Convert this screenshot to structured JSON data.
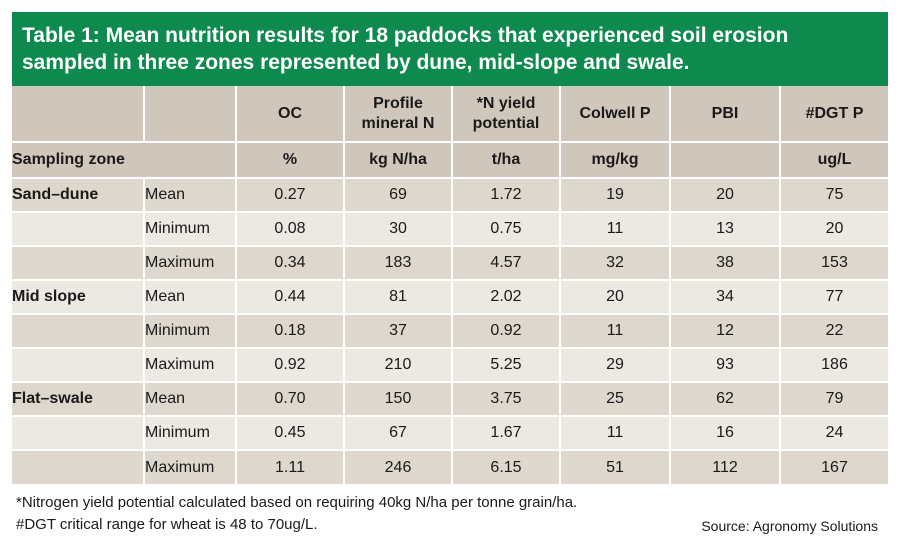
{
  "title": {
    "line1": "Table 1: Mean nutrition results for 18 paddocks that experienced soil erosion",
    "line2": "sampled in three zones represented by dune, mid-slope and swale."
  },
  "columns": [
    {
      "name": "OC",
      "unit": "%"
    },
    {
      "name": "Profile mineral N",
      "unit": "kg N/ha"
    },
    {
      "name": "*N yield potential",
      "unit": "t/ha"
    },
    {
      "name": "Colwell P",
      "unit": "mg/kg"
    },
    {
      "name": "PBI",
      "unit": ""
    },
    {
      "name": "#DGT P",
      "unit": "ug/L"
    }
  ],
  "header_row2_label": "Sampling zone",
  "rows": [
    {
      "zone": "Sand–dune",
      "stat": "Mean",
      "values": [
        "0.27",
        "69",
        "1.72",
        "19",
        "20",
        "75"
      ]
    },
    {
      "zone": "",
      "stat": "Minimum",
      "values": [
        "0.08",
        "30",
        "0.75",
        "11",
        "13",
        "20"
      ]
    },
    {
      "zone": "",
      "stat": "Maximum",
      "values": [
        "0.34",
        "183",
        "4.57",
        "32",
        "38",
        "153"
      ]
    },
    {
      "zone": "Mid slope",
      "stat": "Mean",
      "values": [
        "0.44",
        "81",
        "2.02",
        "20",
        "34",
        "77"
      ]
    },
    {
      "zone": "",
      "stat": "Minimum",
      "values": [
        "0.18",
        "37",
        "0.92",
        "11",
        "12",
        "22"
      ]
    },
    {
      "zone": "",
      "stat": "Maximum",
      "values": [
        "0.92",
        "210",
        "5.25",
        "29",
        "93",
        "186"
      ]
    },
    {
      "zone": "Flat–swale",
      "stat": "Mean",
      "values": [
        "0.70",
        "150",
        "3.75",
        "25",
        "62",
        "79"
      ]
    },
    {
      "zone": "",
      "stat": "Minimum",
      "values": [
        "0.45",
        "67",
        "1.67",
        "11",
        "16",
        "24"
      ]
    },
    {
      "zone": "",
      "stat": "Maximum",
      "values": [
        "1.11",
        "246",
        "6.15",
        "51",
        "112",
        "167"
      ]
    }
  ],
  "footnotes": {
    "note1": "*Nitrogen yield potential calculated based on requiring 40kg N/ha per tonne grain/ha.",
    "note2": "#DGT critical range for wheat is 48 to 70ug/L."
  },
  "source": "Source: Agronomy Solutions",
  "colors": {
    "title_bg": "#0e8a4f",
    "header_bg": "#cfc7bb",
    "row_dark": "#ddd7cd",
    "row_light": "#ece8e2"
  }
}
